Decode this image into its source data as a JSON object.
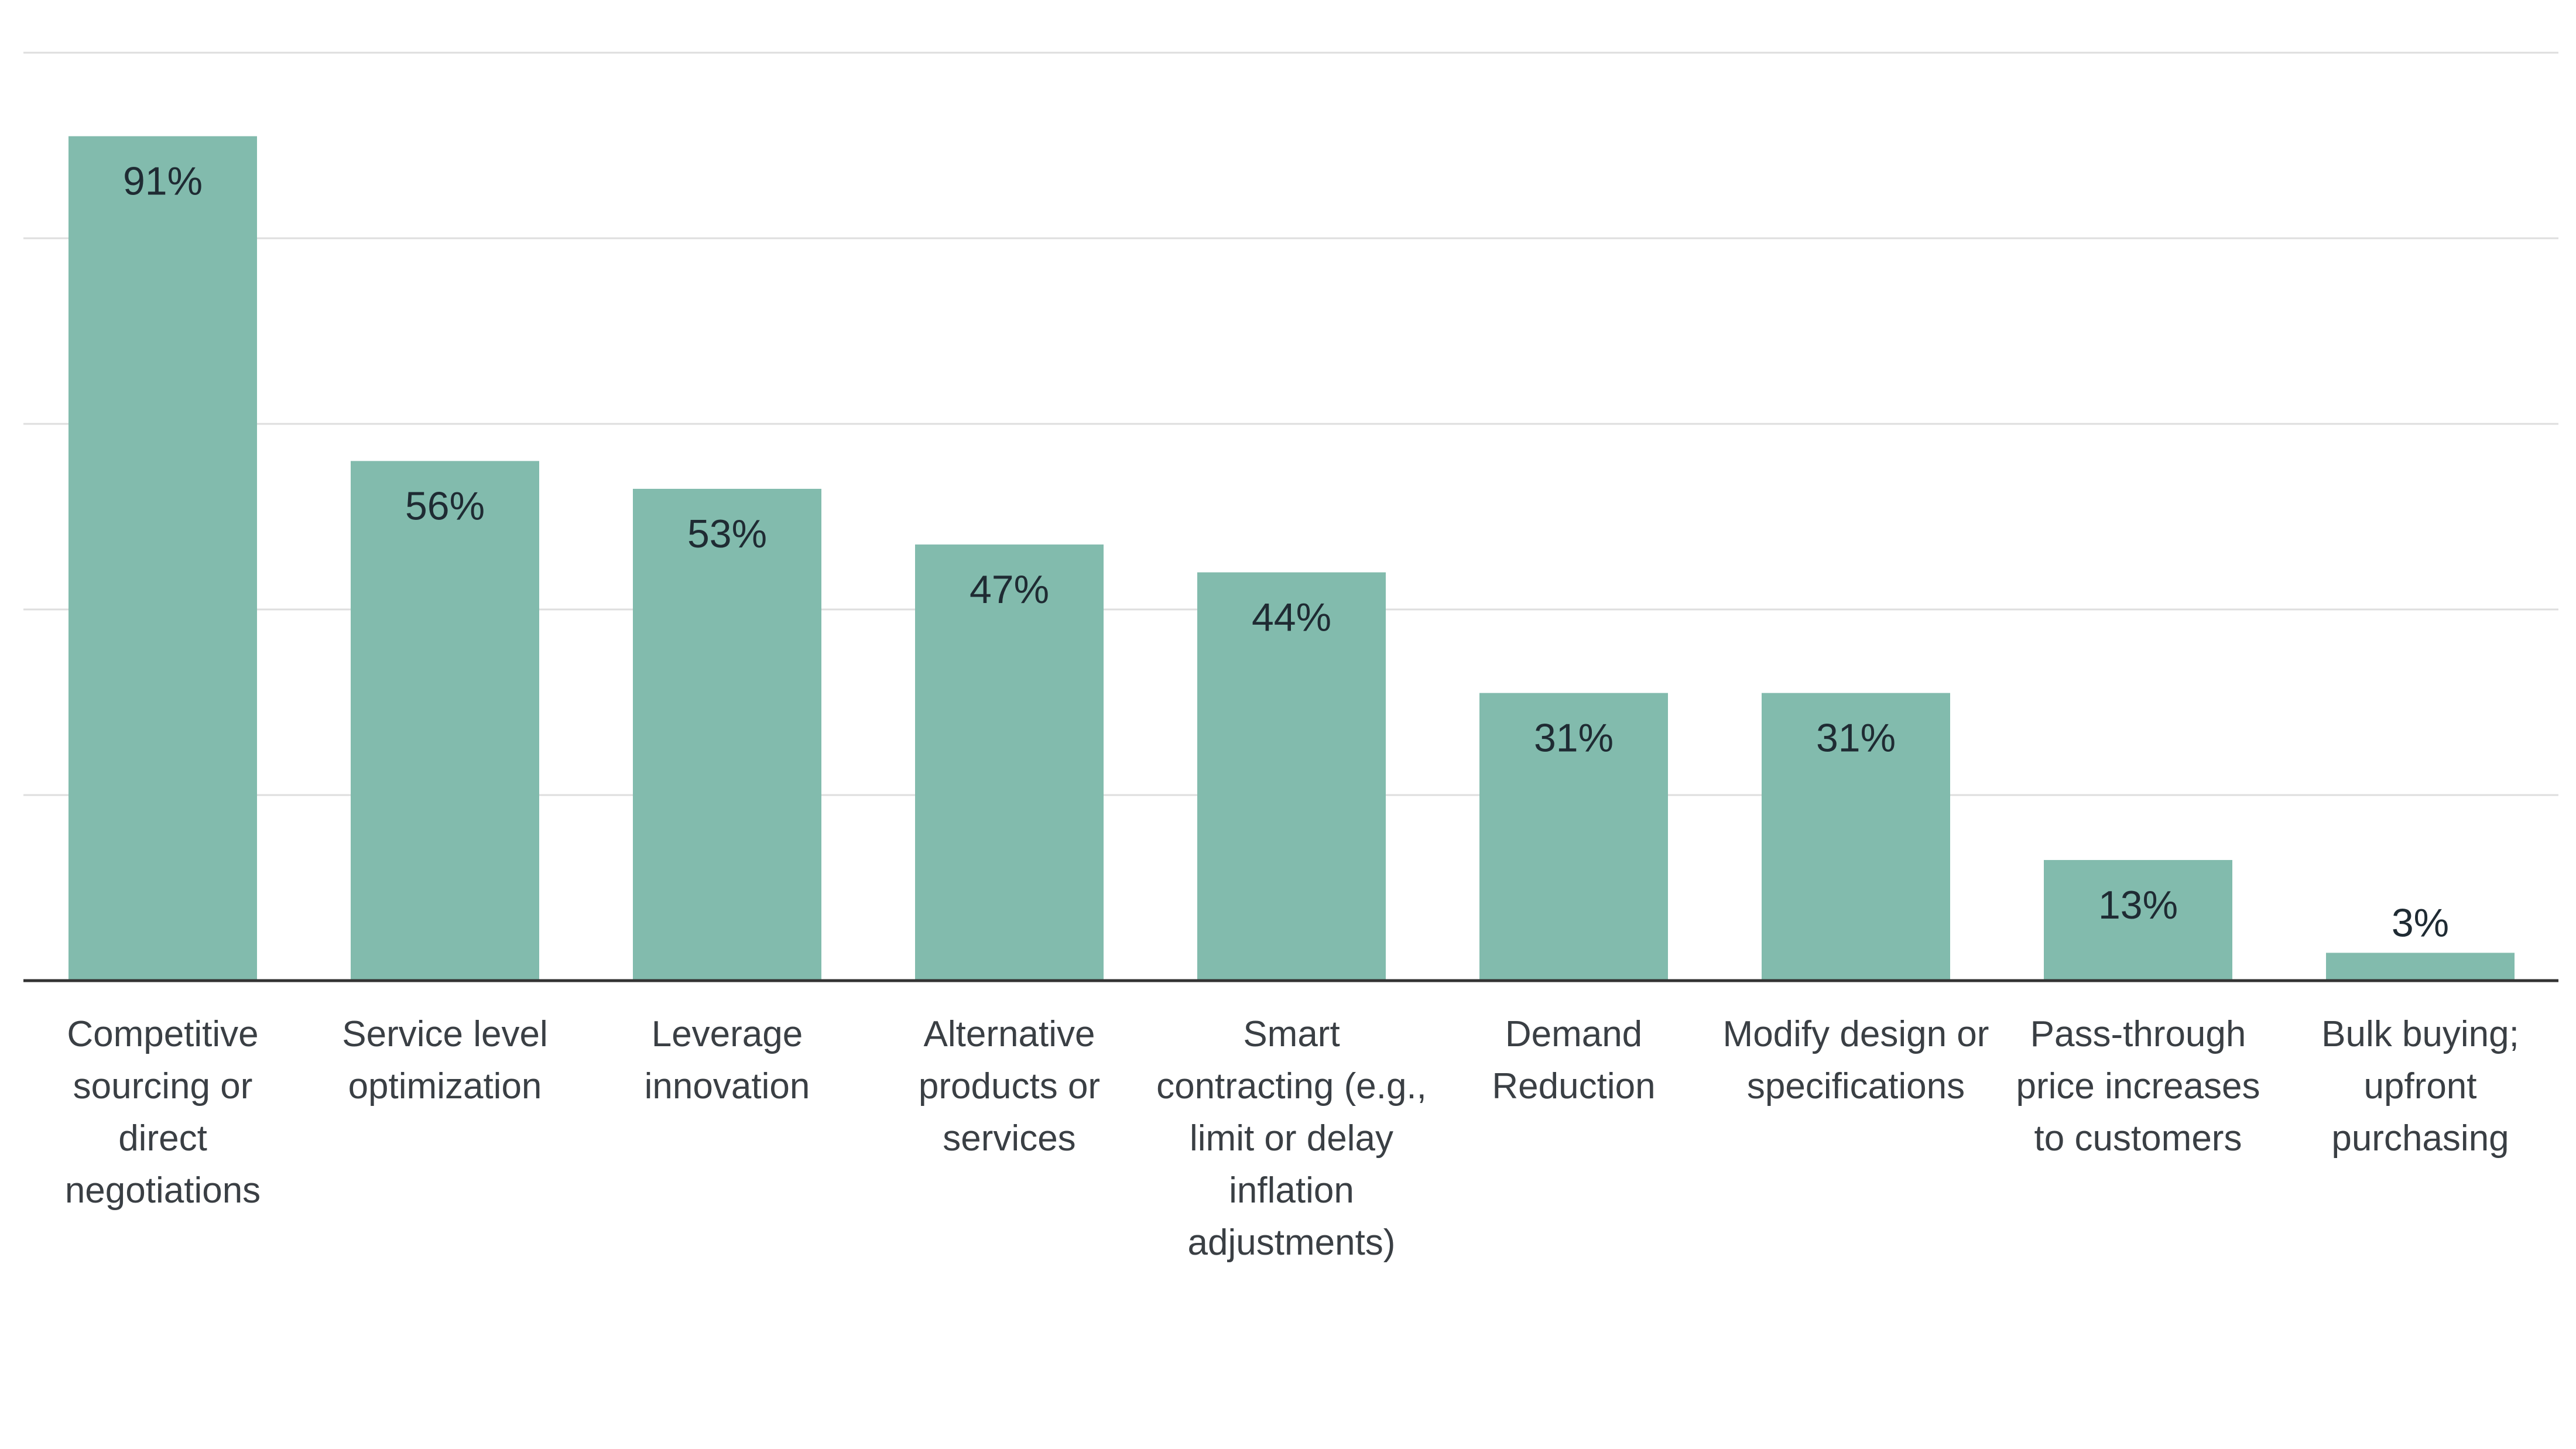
{
  "chart_data": {
    "type": "bar",
    "categories": [
      [
        "Competitive",
        "sourcing or",
        "direct",
        "negotiations"
      ],
      [
        "Service level",
        "optimization"
      ],
      [
        "Leverage",
        "innovation"
      ],
      [
        "Alternative",
        "products or",
        "services"
      ],
      [
        "Smart",
        "contracting (e.g.,",
        "limit or delay",
        "inflation",
        "adjustments)"
      ],
      [
        "Demand",
        "Reduction"
      ],
      [
        "Modify design or",
        "specifications"
      ],
      [
        "Pass-through",
        "price increases",
        "to customers"
      ],
      [
        "Bulk buying;",
        "upfront",
        "purchasing"
      ]
    ],
    "values": [
      91,
      56,
      53,
      47,
      44,
      31,
      31,
      13,
      3
    ],
    "value_labels": [
      "91%",
      "56%",
      "53%",
      "47%",
      "44%",
      "31%",
      "31%",
      "13%",
      "3%"
    ],
    "ylim": [
      0,
      100
    ],
    "grid": true,
    "gridlines": [
      0,
      20,
      40,
      60,
      80,
      100
    ],
    "bar_color": "#82bbad",
    "title": "",
    "xlabel": "",
    "ylabel": ""
  }
}
